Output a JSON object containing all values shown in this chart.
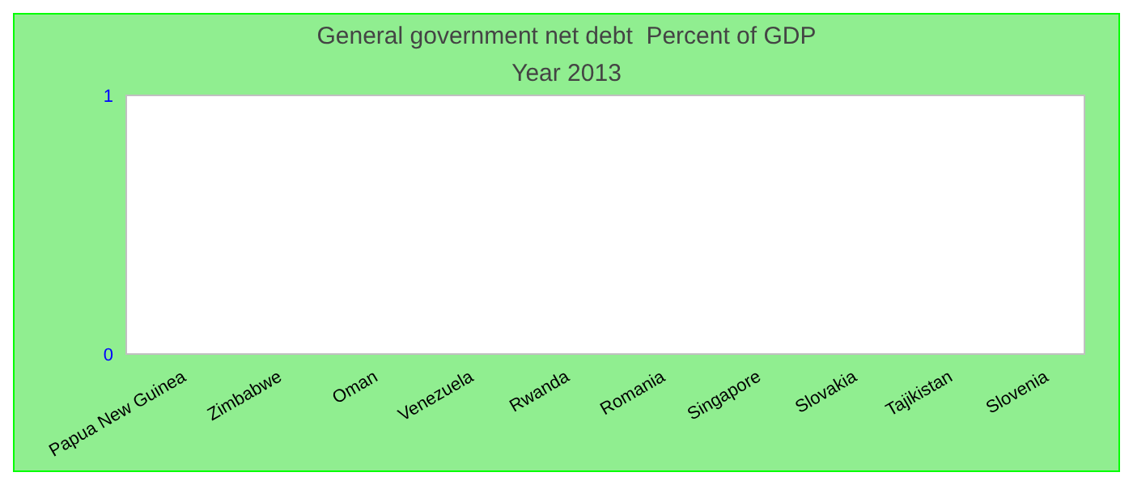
{
  "chart_data": {
    "type": "bar",
    "title": "General government net debt  Percent of GDP",
    "subtitle": "Year 2013",
    "categories": [
      "Papua New Guinea",
      "Zimbabwe",
      "Oman",
      "Venezuela",
      "Rwanda",
      "Romania",
      "Singapore",
      "Slovakia",
      "Tajikistan",
      "Slovenia"
    ],
    "values": [
      0,
      0,
      0,
      0,
      0,
      0,
      0,
      0,
      0,
      0
    ],
    "ylim": [
      0,
      1
    ],
    "yticks": [
      0,
      1
    ],
    "grid": false
  }
}
